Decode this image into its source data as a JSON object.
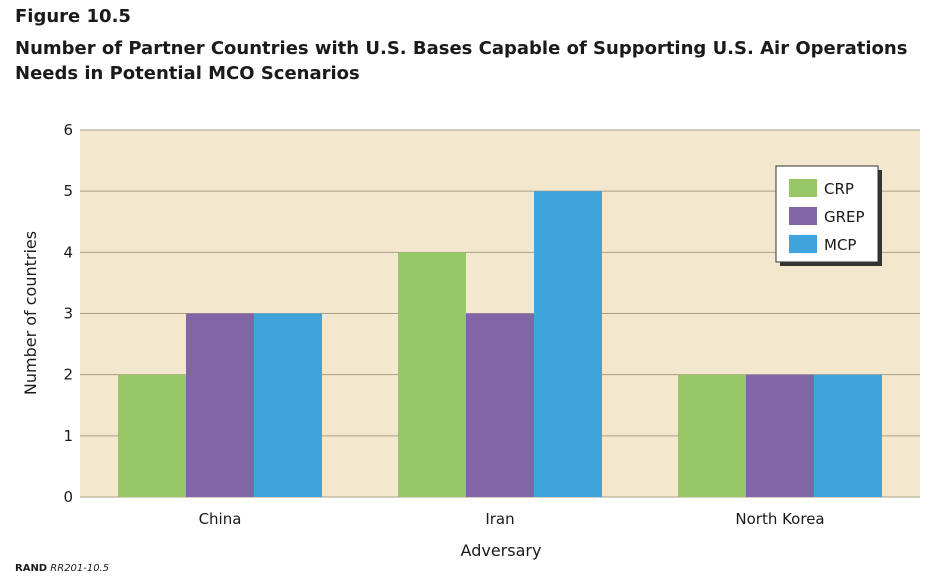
{
  "figure": {
    "label": "Figure 10.5",
    "title": "Number of Partner Countries with U.S. Bases Capable of Supporting U.S. Air Operations Needs in Potential MCO Scenarios",
    "source_org": "RAND",
    "source_id": "RR201-10.5"
  },
  "chart_data": {
    "type": "bar",
    "title": "Number of Partner Countries with U.S. Bases Capable of Supporting U.S. Air Operations Needs in Potential MCO Scenarios",
    "xlabel": "Adversary",
    "ylabel": "Number of countries",
    "categories": [
      "China",
      "Iran",
      "North Korea"
    ],
    "series": [
      {
        "name": "CRP",
        "color": "#97c767",
        "values": [
          2,
          4,
          2
        ]
      },
      {
        "name": "GREP",
        "color": "#8165a5",
        "values": [
          3,
          3,
          2
        ]
      },
      {
        "name": "MCP",
        "color": "#3fa3dc",
        "values": [
          3,
          5,
          2
        ]
      }
    ],
    "ylim": [
      0,
      6
    ],
    "yticks": [
      0,
      1,
      2,
      3,
      4,
      5,
      6
    ],
    "grid": true,
    "plot_background": "#f3e7cd",
    "legend_position": "top-right"
  }
}
